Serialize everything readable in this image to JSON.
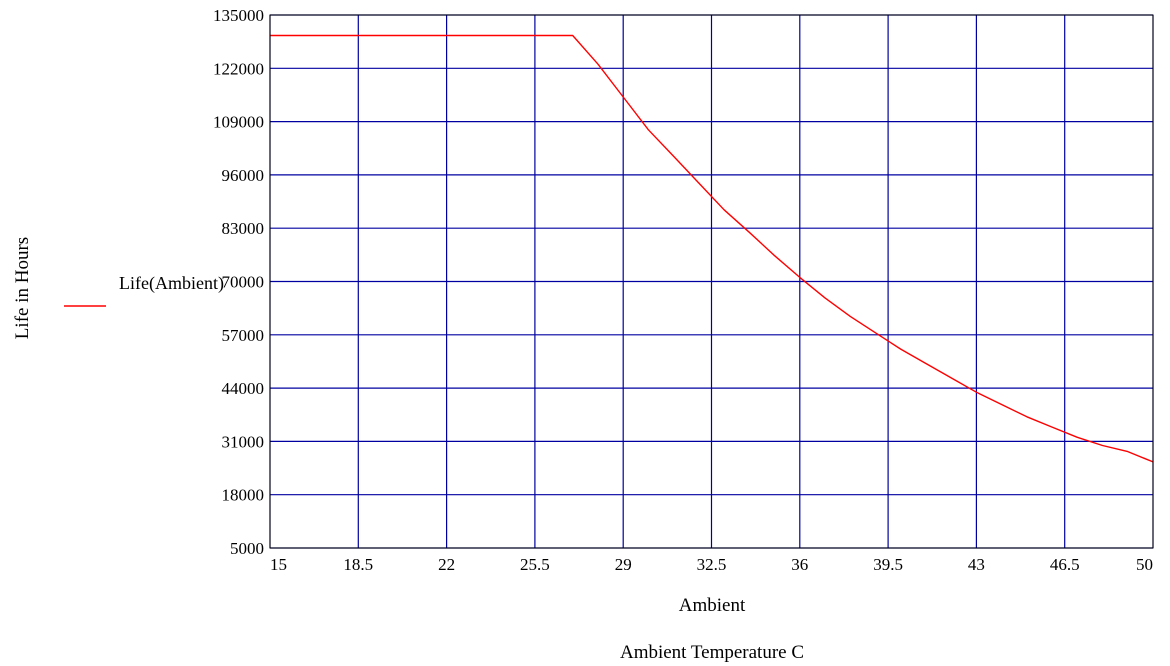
{
  "chart_data": {
    "type": "line",
    "xlabel": "Ambient",
    "ylabel": "Life in Hours",
    "caption": "Ambient Temperature C",
    "xlim": [
      15,
      50
    ],
    "ylim": [
      5000,
      135000
    ],
    "x_ticks": [
      "15",
      "18.5",
      "22",
      "25.5",
      "29",
      "32.5",
      "36",
      "39.5",
      "43",
      "46.5",
      "50"
    ],
    "y_ticks": [
      "135000",
      "122000",
      "109000",
      "96000",
      "83000",
      "70000",
      "57000",
      "44000",
      "31000",
      "18000",
      "5000"
    ],
    "grid": true,
    "grid_color": "#0000a0",
    "legend": {
      "position": "left",
      "label": "Life(Ambient)",
      "color": "#ff0000"
    },
    "series": [
      {
        "name": "Life(Ambient)",
        "color": "#ff0000",
        "x": [
          15,
          27,
          28,
          29,
          30,
          31,
          32,
          33,
          34,
          35,
          36,
          37,
          38,
          39,
          40,
          41,
          42,
          43,
          44,
          45,
          46,
          47,
          48,
          49,
          50
        ],
        "y": [
          130000,
          130000,
          123000,
          115000,
          107000,
          100500,
          94000,
          87500,
          82000,
          76300,
          71000,
          66000,
          61500,
          57500,
          53500,
          50000,
          46500,
          43000,
          40000,
          37000,
          34500,
          32000,
          30000,
          28500,
          26000
        ]
      }
    ]
  }
}
